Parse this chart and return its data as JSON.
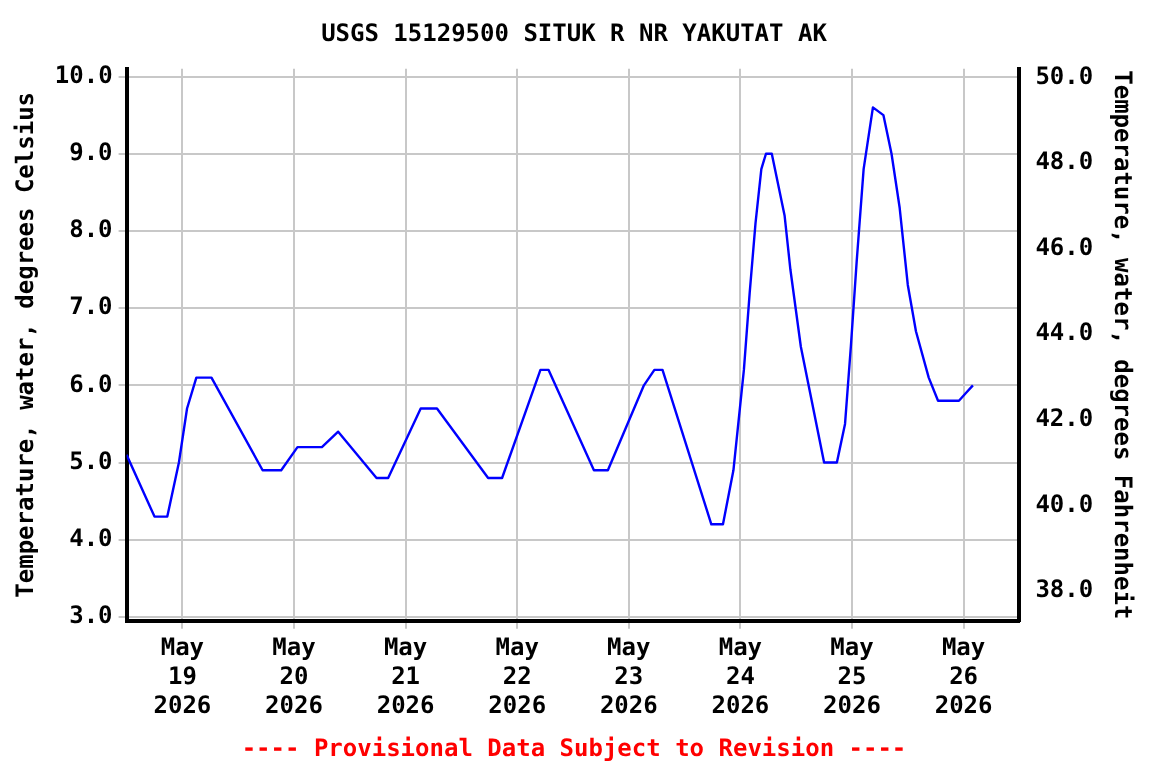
{
  "chart_data": {
    "type": "line",
    "title": "USGS 15129500 SITUK R NR YAKUTAT AK",
    "ylabel": "Temperature, water, degrees Celsius",
    "y2label": "Temperature, water, degrees Fahrenheit",
    "annotations": [
      "---- Provisional Data Subject to Revision ----"
    ],
    "x": [
      "2026-05-18T12:00",
      "2026-05-18T18:00",
      "2026-05-18T20:45",
      "2026-05-18T23:15",
      "2026-05-19T01:00",
      "2026-05-19T03:00",
      "2026-05-19T06:15",
      "2026-05-19T17:15",
      "2026-05-19T21:15",
      "2026-05-20T00:45",
      "2026-05-20T06:00",
      "2026-05-20T09:30",
      "2026-05-20T17:45",
      "2026-05-20T20:15",
      "2026-05-21T03:15",
      "2026-05-21T06:45",
      "2026-05-21T17:45",
      "2026-05-21T20:45",
      "2026-05-22T05:00",
      "2026-05-22T06:45",
      "2026-05-22T16:30",
      "2026-05-22T19:30",
      "2026-05-23T03:15",
      "2026-05-23T05:30",
      "2026-05-23T07:15",
      "2026-05-23T17:45",
      "2026-05-23T20:15",
      "2026-05-23T22:30",
      "2026-05-24T00:45",
      "2026-05-24T02:00",
      "2026-05-24T03:15",
      "2026-05-24T04:30",
      "2026-05-24T05:30",
      "2026-05-24T06:45",
      "2026-05-24T09:30",
      "2026-05-24T10:45",
      "2026-05-24T13:00",
      "2026-05-24T15:00",
      "2026-05-24T18:00",
      "2026-05-24T20:45",
      "2026-05-24T22:30",
      "2026-05-24T23:45",
      "2026-05-25T01:00",
      "2026-05-25T02:30",
      "2026-05-25T04:30",
      "2026-05-25T06:45",
      "2026-05-25T08:30",
      "2026-05-25T10:15",
      "2026-05-25T12:00",
      "2026-05-25T13:45",
      "2026-05-25T16:30",
      "2026-05-25T18:30",
      "2026-05-25T23:00",
      "2026-05-26T00:30",
      "2026-05-26T02:00"
    ],
    "series": [
      {
        "color": "#0000ff",
        "values": [
          5.1,
          4.3,
          4.3,
          5.0,
          5.7,
          6.1,
          6.1,
          4.9,
          4.9,
          5.2,
          5.2,
          5.4,
          4.8,
          4.8,
          5.7,
          5.7,
          4.8,
          4.8,
          6.2,
          6.2,
          4.9,
          4.9,
          6.0,
          6.2,
          6.2,
          4.2,
          4.2,
          4.9,
          6.2,
          7.2,
          8.1,
          8.8,
          9.0,
          9.0,
          8.2,
          7.5,
          6.5,
          5.9,
          5.0,
          5.0,
          5.5,
          6.5,
          7.6,
          8.8,
          9.6,
          9.5,
          9.0,
          8.3,
          7.3,
          6.7,
          6.1,
          5.8,
          5.8,
          5.9,
          6.0
        ]
      }
    ],
    "xlim": [
      "2026-05-18T12:00",
      "2026-05-26T12:00"
    ],
    "xticks": [
      {
        "value": "2026-05-19",
        "label": "May\n19\n2026"
      },
      {
        "value": "2026-05-20",
        "label": "May\n20\n2026"
      },
      {
        "value": "2026-05-21",
        "label": "May\n21\n2026"
      },
      {
        "value": "2026-05-22",
        "label": "May\n22\n2026"
      },
      {
        "value": "2026-05-23",
        "label": "May\n23\n2026"
      },
      {
        "value": "2026-05-24",
        "label": "May\n24\n2026"
      },
      {
        "value": "2026-05-25",
        "label": "May\n25\n2026"
      },
      {
        "value": "2026-05-26",
        "label": "May\n26\n2026"
      }
    ],
    "ylim": [
      2.95,
      10.1
    ],
    "yticks": [
      {
        "value": 3,
        "label": "3.0"
      },
      {
        "value": 4,
        "label": "4.0"
      },
      {
        "value": 5,
        "label": "5.0"
      },
      {
        "value": 6,
        "label": "6.0"
      },
      {
        "value": 7,
        "label": "7.0"
      },
      {
        "value": 8,
        "label": "8.0"
      },
      {
        "value": 9,
        "label": "9.0"
      },
      {
        "value": 10,
        "label": "10.0"
      }
    ],
    "y2lim": [
      37.3,
      50.2
    ],
    "y2ticks": [
      {
        "value": 38,
        "label": "38.0"
      },
      {
        "value": 40,
        "label": "40.0"
      },
      {
        "value": 42,
        "label": "42.0"
      },
      {
        "value": 44,
        "label": "44.0"
      },
      {
        "value": 46,
        "label": "46.0"
      },
      {
        "value": 48,
        "label": "48.0"
      },
      {
        "value": 50,
        "label": "50.0"
      }
    ],
    "grid": true,
    "legend": false
  }
}
